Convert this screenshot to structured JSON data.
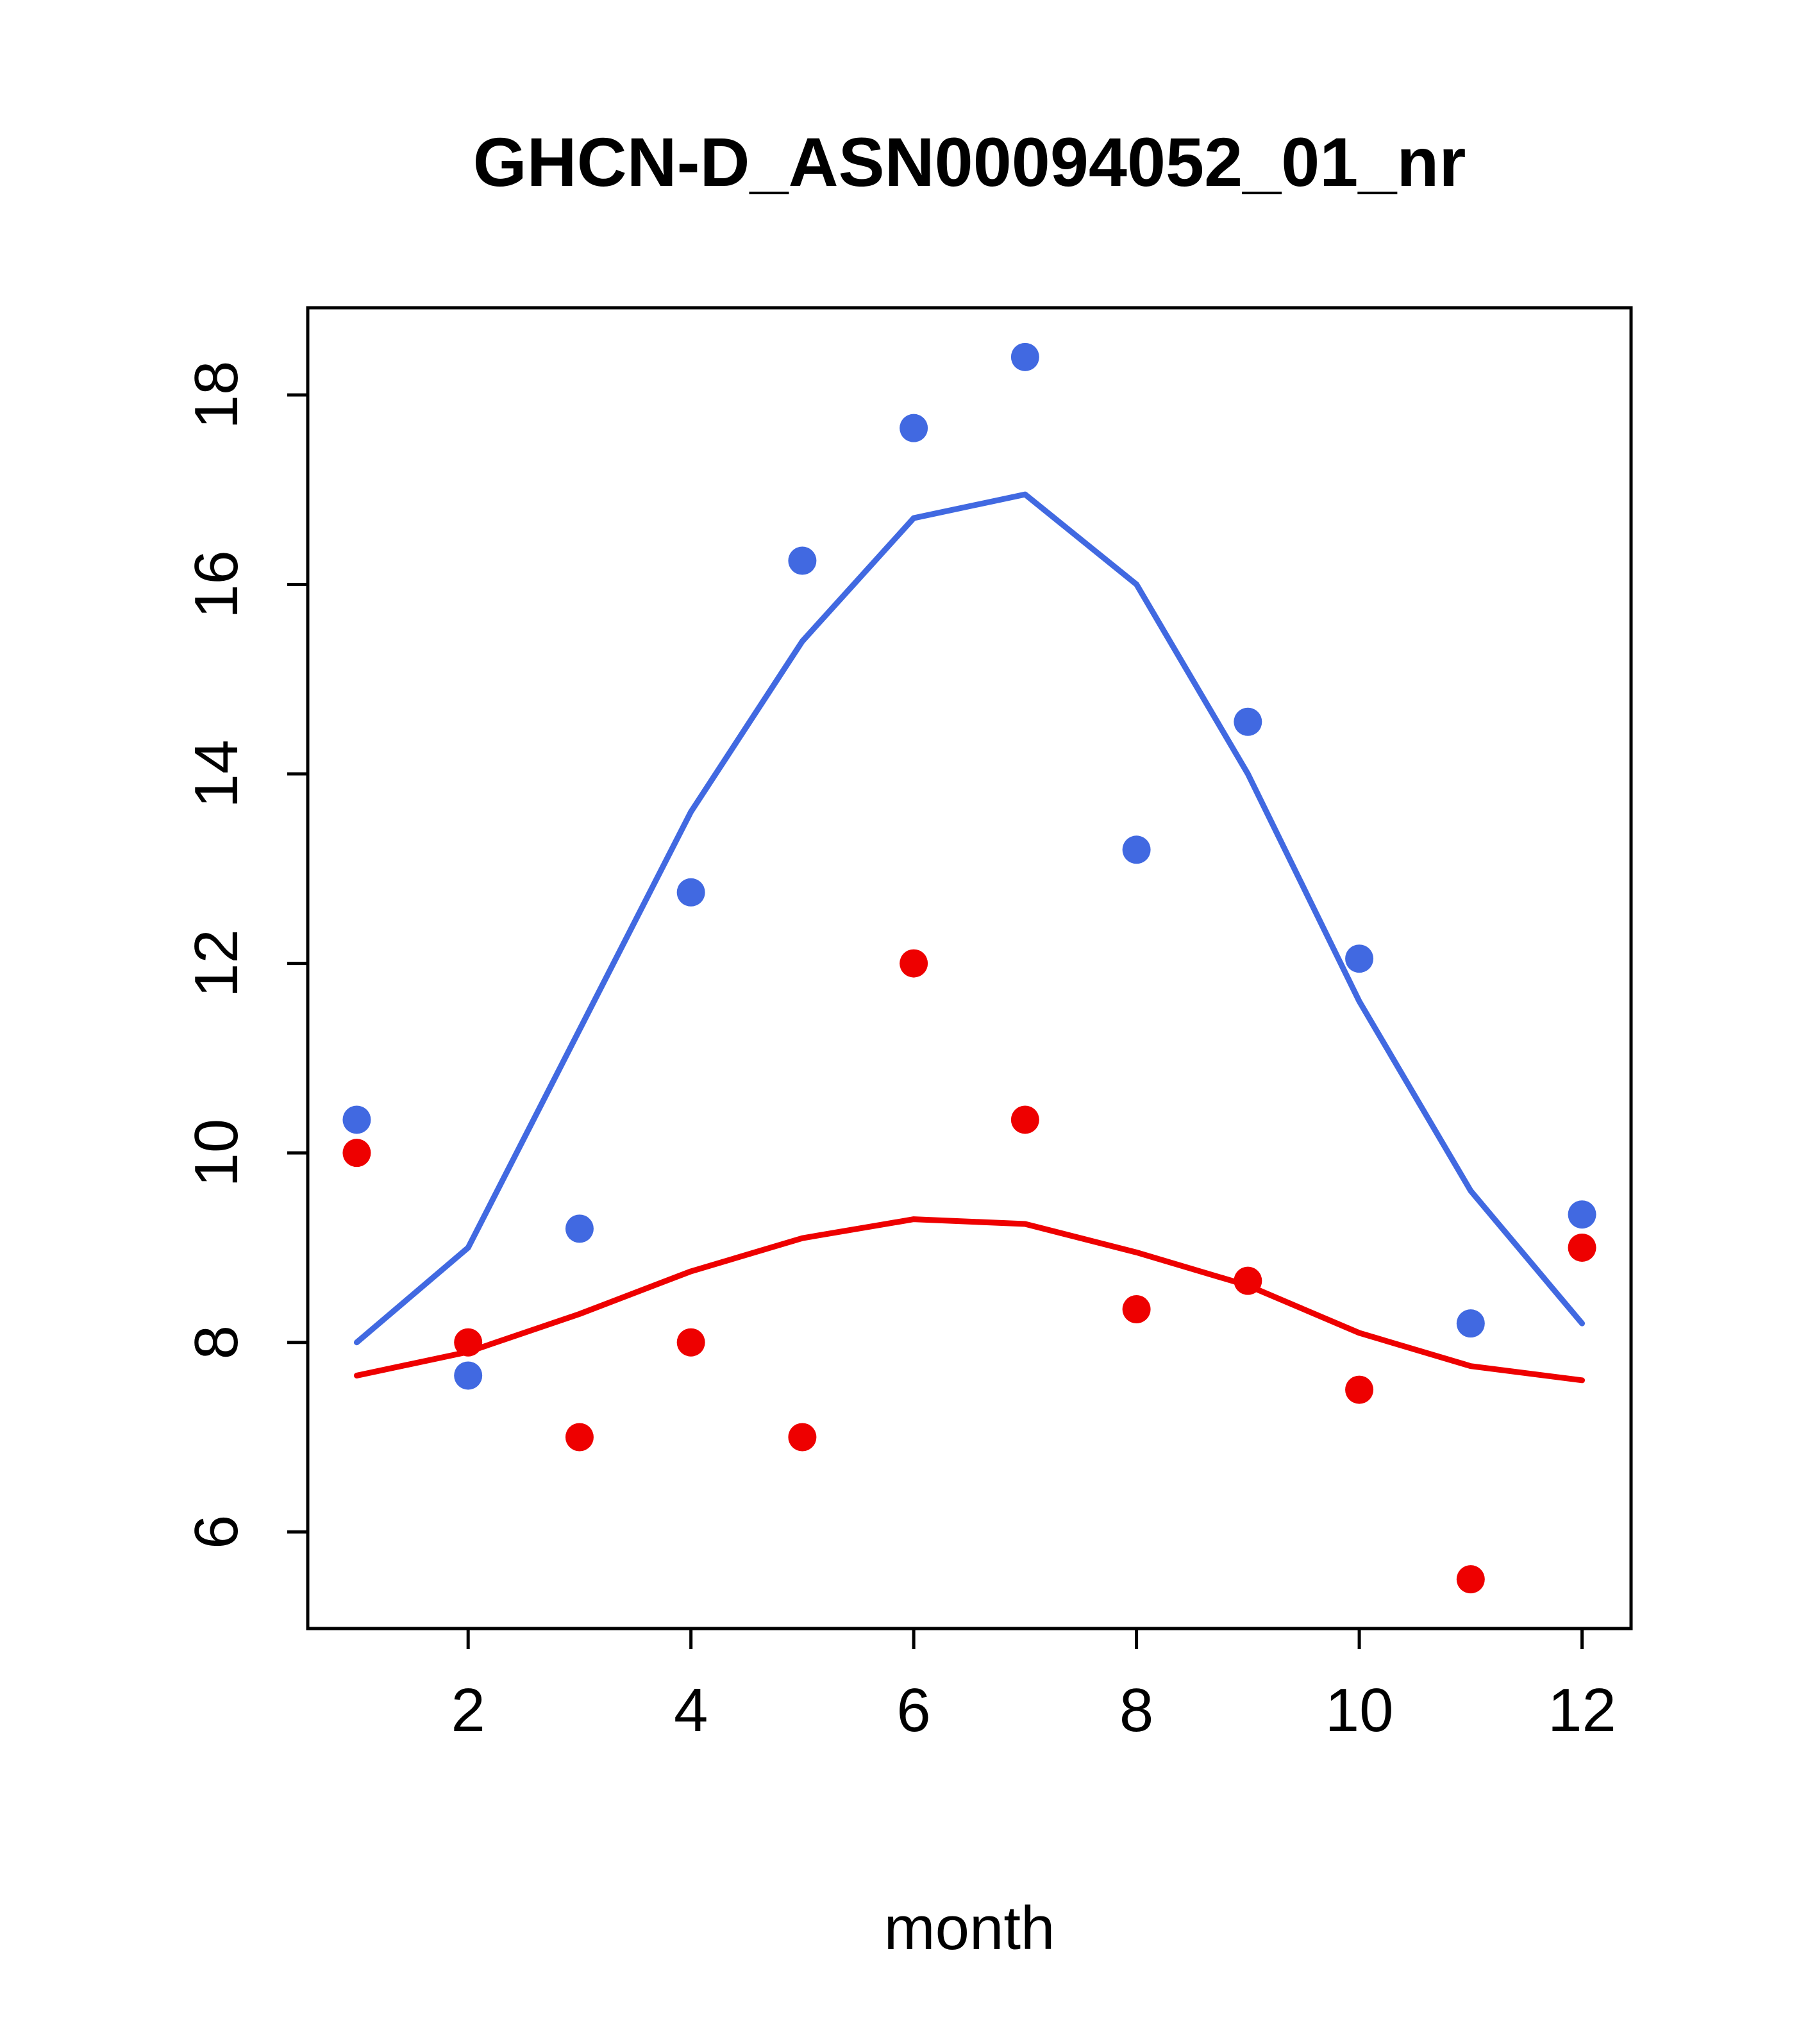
{
  "title": "GHCN-D_ASN00094052_01_nr",
  "colors": {
    "blue": "#4169E1",
    "red": "#EE0000",
    "axis": "#000000",
    "background": "#FFFFFF"
  },
  "chart_data": {
    "type": "scatter",
    "title": "GHCN-D_ASN00094052_01_nr",
    "xlabel": "month",
    "ylabel": "",
    "grid": false,
    "legend": "none",
    "xlim": [
      0.56,
      12.44
    ],
    "ylim": [
      4.98,
      18.92
    ],
    "xticks": [
      2,
      4,
      6,
      8,
      10,
      12
    ],
    "yticks": [
      6,
      8,
      10,
      12,
      14,
      16,
      18
    ],
    "x": [
      1,
      2,
      3,
      4,
      5,
      6,
      7,
      8,
      9,
      10,
      11,
      12
    ],
    "series": [
      {
        "name": "blue-points",
        "kind": "scatter",
        "color": "#4169E1",
        "values": [
          10.35,
          7.65,
          9.2,
          12.75,
          16.25,
          17.65,
          18.4,
          13.2,
          14.55,
          12.05,
          8.2,
          9.35
        ]
      },
      {
        "name": "red-points",
        "kind": "scatter",
        "color": "#EE0000",
        "values": [
          10.0,
          8.0,
          7.0,
          8.0,
          7.0,
          12.0,
          10.35,
          8.35,
          8.65,
          7.5,
          5.5,
          9.0
        ]
      },
      {
        "name": "blue-smooth-line",
        "kind": "line",
        "color": "#4169E1",
        "values": [
          8.0,
          9.0,
          11.3,
          13.6,
          15.4,
          16.7,
          16.95,
          16.0,
          14.0,
          11.6,
          9.6,
          8.2
        ]
      },
      {
        "name": "red-smooth-line",
        "kind": "line",
        "color": "#EE0000",
        "values": [
          7.65,
          7.9,
          8.3,
          8.75,
          9.1,
          9.3,
          9.25,
          8.95,
          8.6,
          8.1,
          7.75,
          7.6
        ]
      }
    ]
  }
}
